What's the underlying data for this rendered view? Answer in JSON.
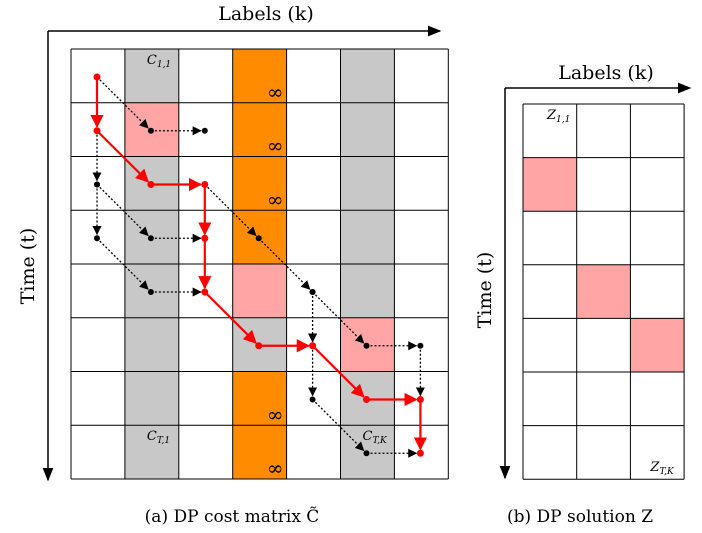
{
  "panel_a": {
    "caption": "(a) DP cost matrix C̃",
    "x_axis_label": "Labels (k)",
    "y_axis_label": "Time (t)",
    "rows": 8,
    "cols": 7,
    "gray_columns": [
      1,
      3,
      5
    ],
    "orange_column": 3,
    "gray_cells_in_orange_column": [
      4,
      5
    ],
    "highlight_cells": [
      [
        1,
        1
      ],
      [
        4,
        3
      ],
      [
        5,
        5
      ]
    ],
    "infinity_symbol": "∞",
    "infinity_cells": [
      [
        0,
        3
      ],
      [
        1,
        3
      ],
      [
        2,
        3
      ],
      [
        6,
        3
      ],
      [
        7,
        3
      ]
    ],
    "cell_labels": [
      {
        "text": "C1,1",
        "row": 0,
        "col": 1
      },
      {
        "text": "CT,1",
        "row": 7,
        "col": 1
      },
      {
        "text": "CT,K",
        "row": 7,
        "col": 5
      }
    ],
    "red_path": [
      [
        0,
        0
      ],
      [
        1,
        0
      ],
      [
        2,
        1
      ],
      [
        2,
        2
      ],
      [
        3,
        2
      ],
      [
        4,
        2
      ],
      [
        5,
        3
      ],
      [
        5,
        4
      ],
      [
        6,
        5
      ],
      [
        6,
        6
      ],
      [
        7,
        6
      ]
    ],
    "black_paths": [
      [
        [
          0,
          0
        ],
        [
          1,
          1
        ],
        [
          1,
          2
        ]
      ],
      [
        [
          1,
          0
        ],
        [
          2,
          0
        ],
        [
          3,
          0
        ],
        [
          4,
          1
        ],
        [
          4,
          2
        ]
      ],
      [
        [
          2,
          0
        ],
        [
          3,
          1
        ],
        [
          3,
          2
        ]
      ],
      [
        [
          2,
          2
        ],
        [
          3,
          3
        ],
        [
          4,
          4
        ],
        [
          5,
          5
        ],
        [
          5,
          6
        ],
        [
          6,
          6
        ]
      ],
      [
        [
          4,
          4
        ],
        [
          5,
          4
        ],
        [
          6,
          4
        ],
        [
          7,
          5
        ],
        [
          7,
          6
        ]
      ]
    ]
  },
  "panel_b": {
    "caption": "(b) DP solution Z",
    "x_axis_label": "Labels (k)",
    "y_axis_label": "Time (t)",
    "rows": 7,
    "cols": 3,
    "highlight_cells": [
      [
        1,
        0
      ],
      [
        3,
        1
      ],
      [
        4,
        2
      ]
    ],
    "cell_labels": [
      {
        "text": "Z1,1",
        "row": 0,
        "col": 0
      },
      {
        "text": "ZT,K",
        "row": 6,
        "col": 2
      }
    ]
  },
  "colors": {
    "gray": "#c8c8c8",
    "orange": "#ff8c00",
    "highlight": "#ffa5a5",
    "path_red": "#ff0000",
    "path_black": "#000000"
  }
}
